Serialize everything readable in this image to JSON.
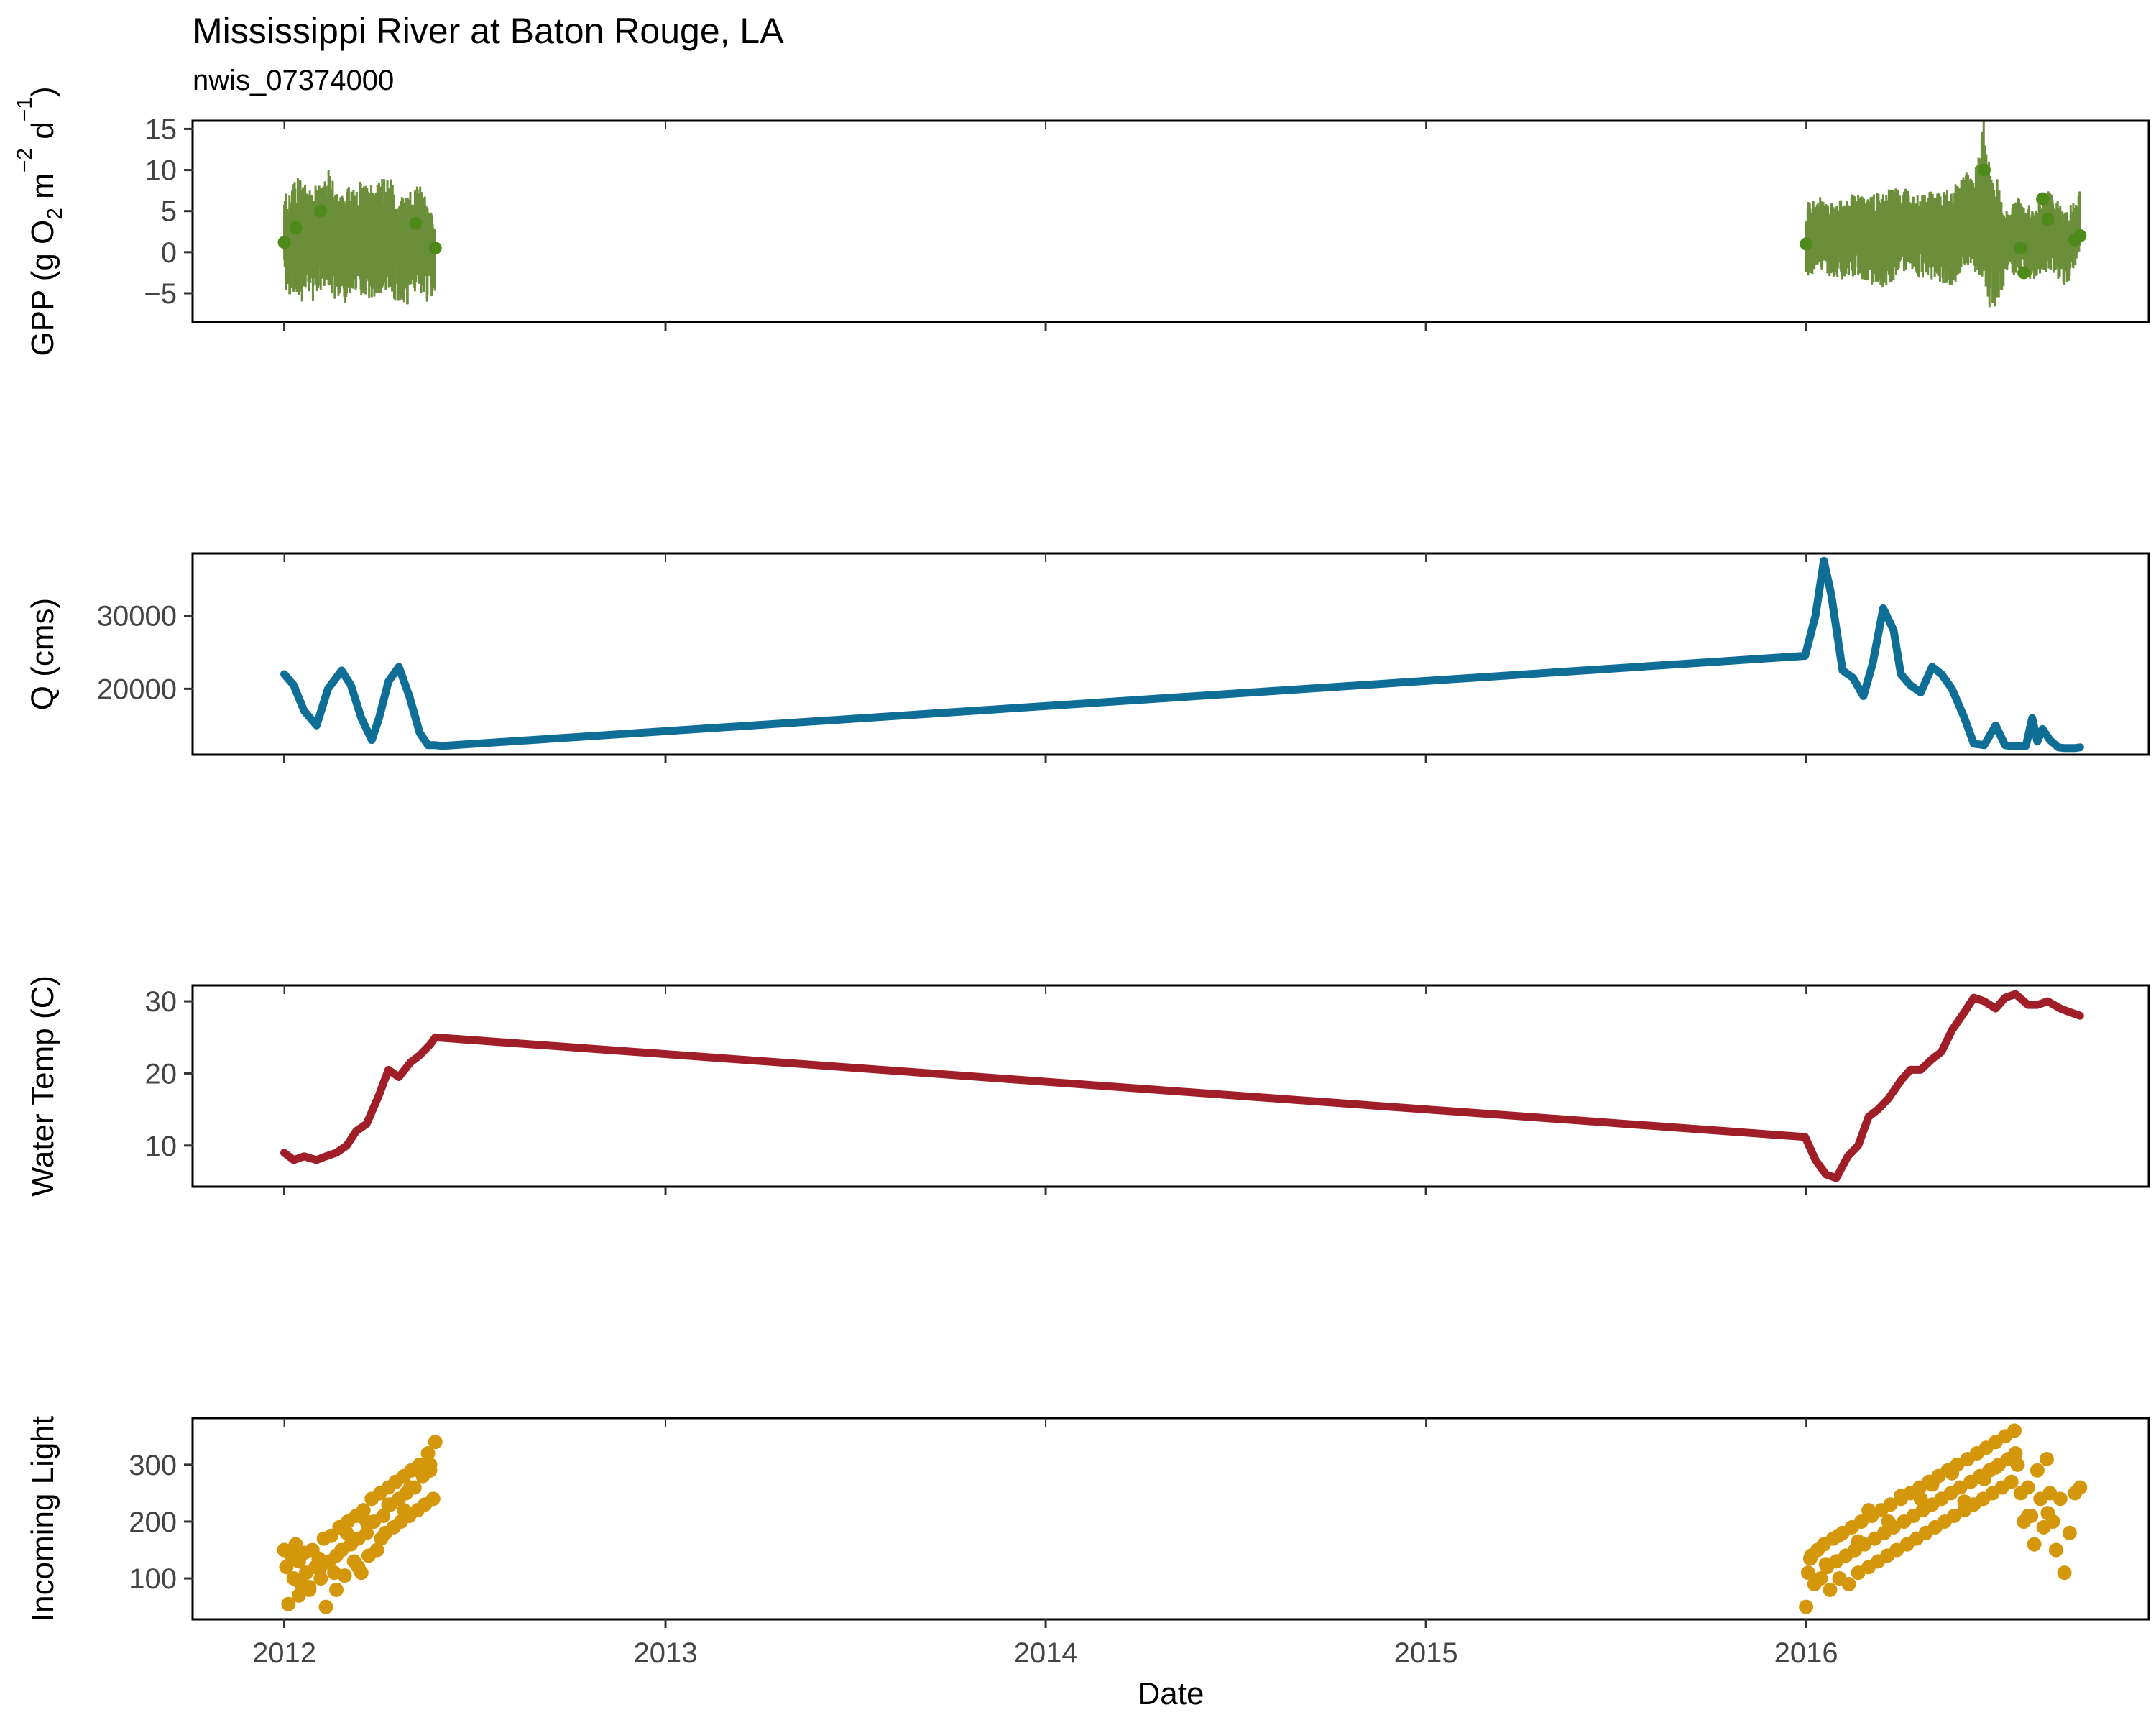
{
  "chart_data": {
    "type": "line",
    "title": "Mississippi River at Baton Rouge, LA",
    "subtitle": "nwis_07374000",
    "xlabel": "Date",
    "x_ticks": [
      "2012",
      "2013",
      "2014",
      "2015",
      "2016"
    ],
    "x_range": [
      "2011-10-05",
      "2016-11-25"
    ],
    "grid": false,
    "panels": [
      {
        "id": "gpp",
        "type": "line",
        "ylabel_parts": [
          "GPP (g  O",
          "2",
          " m",
          "−2",
          " d",
          "−1",
          ")"
        ],
        "ylim": [
          -8.5,
          16
        ],
        "y_ticks": [
          -5,
          0,
          5,
          10,
          15
        ],
        "color": "#6B8E3A",
        "point_color": "#4E8A1A",
        "series": [
          {
            "x": [
              "2012-01-01",
              "2012-01-15",
              "2012-01-30",
              "2012-02-15",
              "2012-03-01",
              "2012-03-15",
              "2012-04-01",
              "2012-04-15",
              "2012-05-01",
              "2012-05-15",
              "2012-05-25",
              "2016-01-01",
              "2016-01-20",
              "2016-02-10",
              "2016-03-01",
              "2016-03-20",
              "2016-04-10",
              "2016-05-01",
              "2016-05-20",
              "2016-06-10",
              "2016-06-20",
              "2016-07-01",
              "2016-07-10",
              "2016-07-25",
              "2016-08-10",
              "2016-08-25",
              "2016-09-10",
              "2016-09-20"
            ],
            "y": [
              1.5,
              2.0,
              1.0,
              2.5,
              1.0,
              2.0,
              1.5,
              2.5,
              1.0,
              2.0,
              0.5,
              1.0,
              2.0,
              1.5,
              2.0,
              1.5,
              2.5,
              2.0,
              1.5,
              3.0,
              5.0,
              2.0,
              1.0,
              2.0,
              1.5,
              2.5,
              1.0,
              2.0
            ],
            "ymin": [
              -5,
              -6,
              -5,
              -6,
              -5,
              -6,
              -5,
              -6,
              -5,
              -6,
              -5,
              -3,
              -3,
              -3,
              -4,
              -4,
              -3,
              -3,
              -4,
              -3,
              -5,
              -6,
              -4,
              -3,
              -3,
              -3,
              -3,
              -2
            ],
            "ymax": [
              7,
              9,
              8,
              9,
              8,
              8,
              9,
              8,
              8,
              7,
              5,
              6,
              6,
              7,
              7,
              8,
              7,
              8,
              8,
              9,
              15,
              10,
              5,
              6,
              6,
              7,
              6,
              7
            ]
          },
          {
            "name": "points",
            "x": [
              "2012-01-01",
              "2012-01-12",
              "2012-02-05",
              "2012-05-06",
              "2012-05-25",
              "2016-01-01",
              "2016-06-20",
              "2016-07-25",
              "2016-07-28",
              "2016-08-15",
              "2016-08-20",
              "2016-09-15",
              "2016-09-20"
            ],
            "y": [
              1.2,
              3.0,
              5.0,
              3.5,
              0.5,
              1.0,
              10.0,
              0.5,
              -2.5,
              6.5,
              4.0,
              1.5,
              2.0
            ]
          }
        ]
      },
      {
        "id": "q",
        "type": "line",
        "ylabel": "Q (cms)",
        "ylim": [
          11000,
          38500
        ],
        "y_ticks": [
          20000,
          30000
        ],
        "color": "#0E6E95",
        "series": [
          {
            "x": [
              "2012-01-01",
              "2012-01-10",
              "2012-01-20",
              "2012-02-01",
              "2012-02-12",
              "2012-02-25",
              "2012-03-05",
              "2012-03-15",
              "2012-03-25",
              "2012-04-01",
              "2012-04-10",
              "2012-04-20",
              "2012-04-30",
              "2012-05-10",
              "2012-05-18",
              "2012-05-25",
              "2012-06-01",
              "2015-12-31",
              "2016-01-10",
              "2016-01-18",
              "2016-01-25",
              "2016-02-05",
              "2016-02-15",
              "2016-02-25",
              "2016-03-05",
              "2016-03-15",
              "2016-03-25",
              "2016-04-01",
              "2016-04-10",
              "2016-04-20",
              "2016-05-01",
              "2016-05-10",
              "2016-05-20",
              "2016-06-01",
              "2016-06-10",
              "2016-06-20",
              "2016-07-01",
              "2016-07-10",
              "2016-07-15",
              "2016-07-22",
              "2016-07-30",
              "2016-08-05",
              "2016-08-10",
              "2016-08-15",
              "2016-08-22",
              "2016-08-30",
              "2016-09-05",
              "2016-09-15",
              "2016-09-20"
            ],
            "y": [
              22000,
              20500,
              17000,
              15000,
              20000,
              22500,
              20500,
              16000,
              13000,
              16000,
              21000,
              23000,
              19000,
              14000,
              12300,
              12300,
              12200,
              24500,
              30000,
              37500,
              33000,
              22500,
              21500,
              19000,
              23500,
              31000,
              28000,
              22000,
              20500,
              19500,
              23000,
              22000,
              20000,
              16000,
              12500,
              12300,
              15000,
              12300,
              12200,
              12200,
              12200,
              16000,
              12800,
              14500,
              13000,
              12000,
              11900,
              11900,
              12000
            ]
          }
        ]
      },
      {
        "id": "temp",
        "type": "line",
        "ylabel": "Water Temp (C)",
        "ylim": [
          4.3,
          32.2
        ],
        "y_ticks": [
          10,
          20,
          30
        ],
        "color": "#A01E27",
        "series": [
          {
            "x": [
              "2012-01-01",
              "2012-01-10",
              "2012-01-20",
              "2012-02-01",
              "2012-02-10",
              "2012-02-20",
              "2012-03-01",
              "2012-03-10",
              "2012-03-20",
              "2012-04-01",
              "2012-04-10",
              "2012-04-20",
              "2012-05-01",
              "2012-05-10",
              "2012-05-20",
              "2012-05-25",
              "2015-12-31",
              "2016-01-10",
              "2016-01-20",
              "2016-01-30",
              "2016-02-10",
              "2016-02-20",
              "2016-03-01",
              "2016-03-10",
              "2016-03-20",
              "2016-04-01",
              "2016-04-10",
              "2016-04-20",
              "2016-05-01",
              "2016-05-10",
              "2016-05-20",
              "2016-06-01",
              "2016-06-10",
              "2016-06-20",
              "2016-07-01",
              "2016-07-10",
              "2016-07-20",
              "2016-08-01",
              "2016-08-10",
              "2016-08-20",
              "2016-09-01",
              "2016-09-10",
              "2016-09-20"
            ],
            "y": [
              9.0,
              8.0,
              8.5,
              8.0,
              8.5,
              9.0,
              10.0,
              12.0,
              13.0,
              17.0,
              20.5,
              19.5,
              21.5,
              22.5,
              24.0,
              25.0,
              11.2,
              8.0,
              6.0,
              5.5,
              8.5,
              10.0,
              14.0,
              15.0,
              16.5,
              19.0,
              20.5,
              20.5,
              22.0,
              23.0,
              26.0,
              28.5,
              30.5,
              30.0,
              29.0,
              30.5,
              31.0,
              29.5,
              29.5,
              30.0,
              29.0,
              28.5,
              28.0
            ]
          }
        ]
      },
      {
        "id": "light",
        "type": "scatter",
        "ylabel": "Incoming Light",
        "ylim": [
          28,
          382
        ],
        "y_ticks": [
          100,
          200,
          300
        ],
        "color": "#D4960A",
        "series": [
          {
            "x": [
              "2012-01-01",
              "2012-01-03",
              "2012-01-05",
              "2012-01-08",
              "2012-01-10",
              "2012-01-12",
              "2012-01-15",
              "2012-01-17",
              "2012-01-20",
              "2012-01-22",
              "2012-01-25",
              "2012-01-28",
              "2012-01-31",
              "2012-02-03",
              "2012-02-05",
              "2012-02-08",
              "2012-02-10",
              "2012-02-13",
              "2012-02-15",
              "2012-02-18",
              "2012-02-20",
              "2012-02-23",
              "2012-02-25",
              "2012-02-28",
              "2012-03-02",
              "2012-03-05",
              "2012-03-08",
              "2012-03-10",
              "2012-03-12",
              "2012-03-15",
              "2012-03-17",
              "2012-03-20",
              "2012-03-22",
              "2012-03-25",
              "2012-03-27",
              "2012-03-30",
              "2012-04-02",
              "2012-04-05",
              "2012-04-07",
              "2012-04-10",
              "2012-04-12",
              "2012-04-15",
              "2012-04-17",
              "2012-04-20",
              "2012-04-22",
              "2012-04-25",
              "2012-04-27",
              "2012-04-30",
              "2012-05-02",
              "2012-05-05",
              "2012-05-08",
              "2012-05-10",
              "2012-05-13",
              "2012-05-15",
              "2012-05-18",
              "2012-05-20",
              "2012-05-23",
              "2012-05-25",
              "2012-01-15",
              "2012-02-05",
              "2012-03-01",
              "2012-03-20",
              "2012-04-10",
              "2012-05-01",
              "2012-05-20",
              "2012-01-25",
              "2012-02-20",
              "2012-03-12",
              "2012-04-03",
              "2012-04-25",
              "2016-01-01",
              "2016-01-03",
              "2016-01-06",
              "2016-01-09",
              "2016-01-12",
              "2016-01-15",
              "2016-01-18",
              "2016-01-21",
              "2016-01-24",
              "2016-01-27",
              "2016-01-30",
              "2016-02-02",
              "2016-02-05",
              "2016-02-08",
              "2016-02-11",
              "2016-02-14",
              "2016-02-17",
              "2016-02-20",
              "2016-02-23",
              "2016-02-26",
              "2016-03-01",
              "2016-03-04",
              "2016-03-07",
              "2016-03-10",
              "2016-03-13",
              "2016-03-16",
              "2016-03-19",
              "2016-03-22",
              "2016-03-25",
              "2016-03-28",
              "2016-04-01",
              "2016-04-04",
              "2016-04-07",
              "2016-04-10",
              "2016-04-13",
              "2016-04-16",
              "2016-04-19",
              "2016-04-22",
              "2016-04-25",
              "2016-04-28",
              "2016-05-01",
              "2016-05-04",
              "2016-05-07",
              "2016-05-10",
              "2016-05-13",
              "2016-05-16",
              "2016-05-19",
              "2016-05-22",
              "2016-05-25",
              "2016-05-28",
              "2016-06-01",
              "2016-06-04",
              "2016-06-07",
              "2016-06-10",
              "2016-06-13",
              "2016-06-16",
              "2016-06-19",
              "2016-06-22",
              "2016-06-25",
              "2016-06-28",
              "2016-07-01",
              "2016-07-04",
              "2016-07-07",
              "2016-07-10",
              "2016-07-13",
              "2016-07-16",
              "2016-07-19",
              "2016-07-22",
              "2016-07-25",
              "2016-07-28",
              "2016-08-01",
              "2016-08-04",
              "2016-08-07",
              "2016-08-10",
              "2016-08-13",
              "2016-08-16",
              "2016-08-19",
              "2016-08-22",
              "2016-08-25",
              "2016-08-28",
              "2016-09-01",
              "2016-09-05",
              "2016-09-10",
              "2016-09-15",
              "2016-09-20",
              "2016-01-05",
              "2016-02-01",
              "2016-03-01",
              "2016-04-01",
              "2016-05-01",
              "2016-06-01",
              "2016-07-01",
              "2016-08-01",
              "2016-01-20",
              "2016-02-20",
              "2016-03-20",
              "2016-04-20",
              "2016-05-20",
              "2016-06-20",
              "2016-07-20",
              "2016-08-20"
            ],
            "y": [
              150,
              120,
              55,
              140,
              100,
              160,
              130,
              90,
              145,
              110,
              80,
              150,
              120,
              135,
              100,
              170,
              50,
              130,
              175,
              110,
              80,
              190,
              150,
              105,
              200,
              160,
              130,
              210,
              170,
              110,
              220,
              180,
              140,
              240,
              200,
              150,
              250,
              210,
              180,
              260,
              230,
              190,
              270,
              240,
              200,
              280,
              250,
              210,
              290,
              260,
              220,
              300,
              280,
              230,
              320,
              300,
              240,
              340,
              70,
              120,
              180,
              200,
              230,
              260,
              290,
              85,
              140,
              120,
              170,
              220,
              50,
              110,
              140,
              90,
              150,
              100,
              160,
              120,
              80,
              170,
              130,
              100,
              180,
              140,
              90,
              190,
              150,
              110,
              200,
              160,
              120,
              210,
              170,
              130,
              220,
              180,
              140,
              230,
              190,
              150,
              240,
              200,
              160,
              250,
              210,
              170,
              260,
              220,
              180,
              270,
              230,
              190,
              280,
              240,
              200,
              290,
              250,
              210,
              300,
              260,
              220,
              310,
              270,
              230,
              320,
              280,
              240,
              330,
              290,
              250,
              340,
              300,
              260,
              350,
              310,
              270,
              360,
              300,
              250,
              200,
              260,
              210,
              160,
              290,
              240,
              190,
              310,
              250,
              200,
              150,
              240,
              110,
              180,
              250,
              260,
              135,
              175,
              220,
              245,
              265,
              235,
              295,
              210,
              125,
              165,
              200,
              240,
              285,
              275,
              320,
              215
            ]
          }
        ]
      }
    ]
  }
}
